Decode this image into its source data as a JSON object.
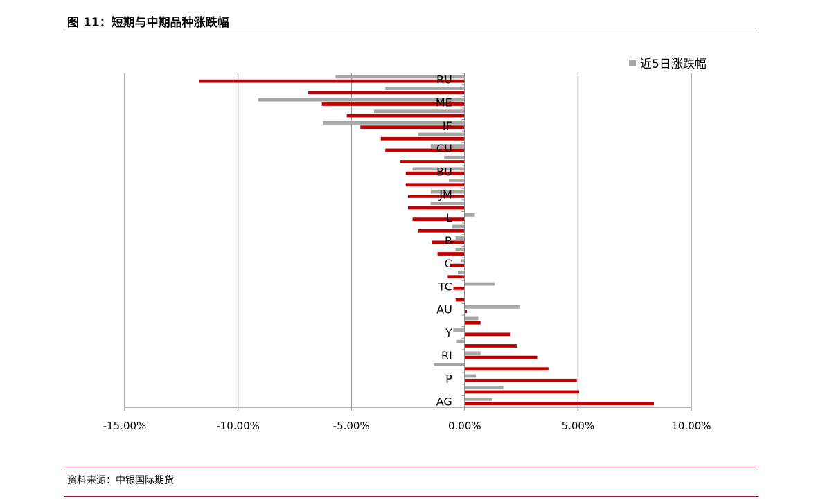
{
  "figure_title": "图 11：短期与中期品种涨跌幅",
  "source_note": "资料来源：中银国际期货",
  "colors": {
    "series_short": "#a6a6a6",
    "series_mid": "#c00000",
    "rule": "#9b1b30",
    "grid": "#868686"
  },
  "chart_data": {
    "type": "bar",
    "orientation": "horizontal",
    "title": "",
    "xlabel": "",
    "ylabel": "",
    "xlim": [
      -15,
      10
    ],
    "x_ticks": [
      "-15.00%",
      "-10.00%",
      "-5.00%",
      "0.00%",
      "5.00%",
      "10.00%"
    ],
    "legend": {
      "position": "top-right",
      "entries": [
        "近5日涨跌幅"
      ]
    },
    "grid": "vertical",
    "categories": [
      "RU",
      "",
      "ME",
      "",
      "IF",
      "",
      "CU",
      "",
      "BU",
      "",
      "JM",
      "",
      "L",
      "",
      "B",
      "",
      "C",
      "",
      "TC",
      "",
      "AU",
      "",
      "Y",
      "",
      "RI",
      "",
      "P",
      "",
      "AG"
    ],
    "series": [
      {
        "name": "近5日涨跌幅",
        "values": [
          -5.7,
          -3.5,
          -9.1,
          -4.0,
          -6.25,
          -2.05,
          -1.5,
          -0.9,
          -2.3,
          -0.7,
          -1.5,
          -1.5,
          0.45,
          -0.55,
          -0.4,
          -0.4,
          -0.15,
          -0.3,
          1.35,
          0,
          2.45,
          0.6,
          -0.5,
          -0.35,
          0.7,
          -1.35,
          0.5,
          1.7,
          1.2
        ]
      },
      {
        "values": [
          -11.7,
          -6.9,
          -6.3,
          -5.2,
          -4.6,
          -3.7,
          -3.5,
          -2.85,
          -2.6,
          -2.6,
          -2.5,
          -2.5,
          -2.3,
          -2.05,
          -1.45,
          -1.2,
          -0.65,
          -0.75,
          -0.5,
          -0.4,
          0.1,
          0.7,
          2.0,
          2.3,
          3.2,
          3.7,
          4.95,
          5.05,
          8.35
        ]
      }
    ]
  }
}
